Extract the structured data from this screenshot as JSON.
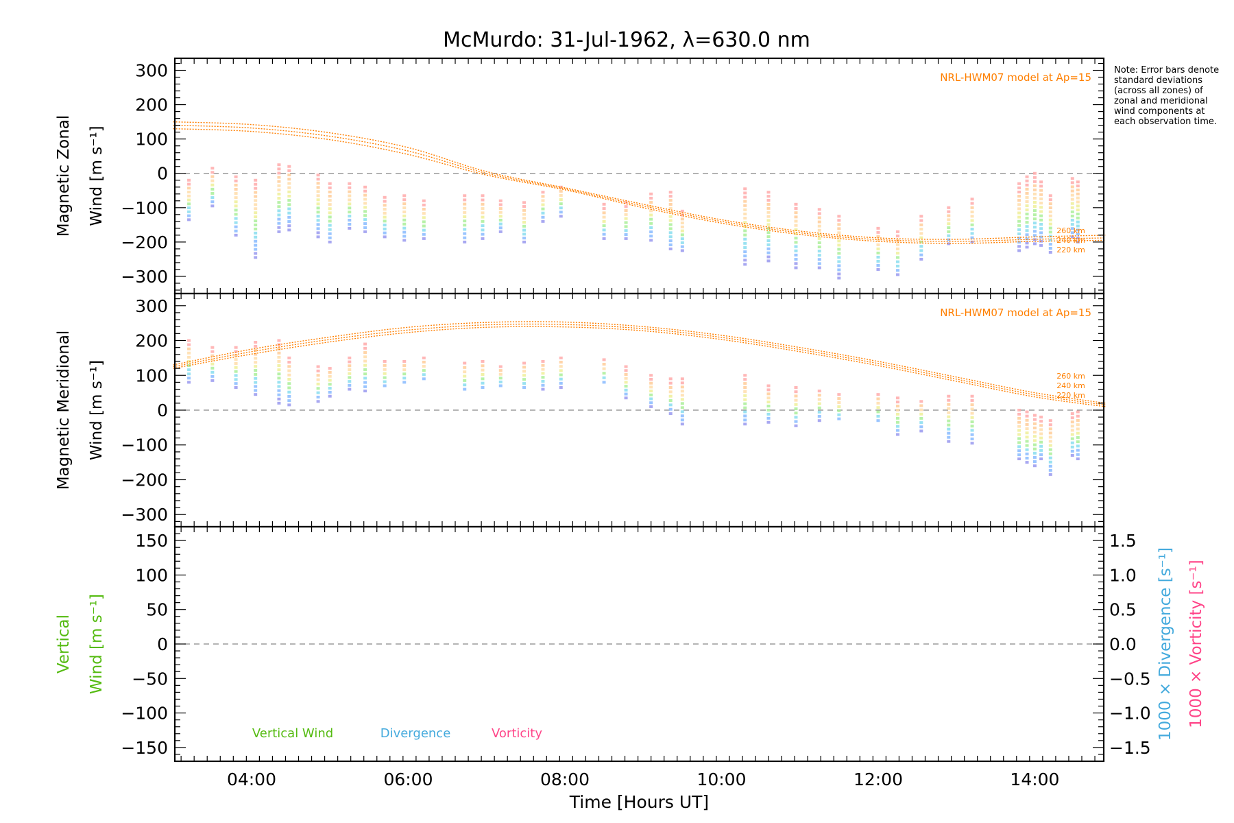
{
  "title": "McMurdo: 31-Jul-1962, λ=630.0 nm",
  "note": "Note: Error bars denote standard deviations (across all zones) of zonal and meridional wind components at each observation time.",
  "colors": {
    "model": "#ff7f00",
    "vertical": "#55bb11",
    "divergence": "#44aadd",
    "vorticity": "#ff4488",
    "zero_line": "#888888",
    "palette": [
      "#9999ee",
      "#88bbff",
      "#88ddee",
      "#aaee99",
      "#eeee99",
      "#ffddaa",
      "#ffcc99",
      "#ffaaaa"
    ]
  },
  "chart_data": {
    "type": "scatter",
    "x_axis": {
      "label": "Time [Hours UT]",
      "range": [
        3.02,
        14.88
      ],
      "ticks": [
        "04:00",
        "06:00",
        "08:00",
        "10:00",
        "12:00",
        "14:00"
      ],
      "tick_values": [
        4,
        6,
        8,
        10,
        12,
        14
      ]
    },
    "panels": [
      {
        "name": "zonal",
        "ylabel": [
          "Magnetic Zonal",
          "Wind [m s⁻¹]"
        ],
        "ylim": [
          -350,
          335
        ],
        "yticks": [
          300,
          200,
          100,
          0,
          -100,
          -200,
          -300
        ],
        "yticklabels": [
          "300",
          "200",
          "100",
          "0",
          "−100",
          "−200",
          "−300"
        ],
        "model_label": "NRL-HWM07 model at Ap=15",
        "altitude_labels": [
          "260 km",
          "240 km",
          "220 km"
        ],
        "model_curves": [
          {
            "altitude": "260 km",
            "x": [
              3.0,
              4.0,
              5.0,
              6.0,
              7.0,
              8.0,
              9.0,
              10.0,
              11.0,
              12.0,
              13.0,
              14.0,
              14.9
            ],
            "y": [
              150,
              142,
              118,
              75,
              5,
              -42,
              -90,
              -135,
              -168,
              -188,
              -192,
              -185,
              -180
            ]
          },
          {
            "altitude": "240 km",
            "x": [
              3.0,
              4.0,
              5.0,
              6.0,
              7.0,
              8.0,
              9.0,
              10.0,
              11.0,
              12.0,
              13.0,
              14.0,
              14.9
            ],
            "y": [
              140,
              132,
              108,
              65,
              0,
              -45,
              -95,
              -140,
              -173,
              -193,
              -198,
              -192,
              -188
            ]
          },
          {
            "altitude": "220 km",
            "x": [
              3.0,
              4.0,
              5.0,
              6.0,
              7.0,
              8.0,
              9.0,
              10.0,
              11.0,
              12.0,
              13.0,
              14.0,
              14.9
            ],
            "y": [
              130,
              122,
              98,
              55,
              -5,
              -48,
              -100,
              -145,
              -178,
              -198,
              -204,
              -198,
              -195
            ]
          }
        ],
        "observations": [
          {
            "t": 3.2,
            "low": -135,
            "high": -20
          },
          {
            "t": 3.5,
            "low": -95,
            "high": 15
          },
          {
            "t": 3.8,
            "low": -180,
            "high": -10
          },
          {
            "t": 4.05,
            "low": -245,
            "high": -20
          },
          {
            "t": 4.35,
            "low": -170,
            "high": 25
          },
          {
            "t": 4.48,
            "low": -165,
            "high": 20
          },
          {
            "t": 4.85,
            "low": -185,
            "high": -5
          },
          {
            "t": 5.0,
            "low": -200,
            "high": -30
          },
          {
            "t": 5.25,
            "low": -160,
            "high": -30
          },
          {
            "t": 5.45,
            "low": -170,
            "high": -40
          },
          {
            "t": 5.7,
            "low": -185,
            "high": -70
          },
          {
            "t": 5.95,
            "low": -195,
            "high": -65
          },
          {
            "t": 6.2,
            "low": -190,
            "high": -80
          },
          {
            "t": 6.72,
            "low": -200,
            "high": -65
          },
          {
            "t": 6.95,
            "low": -190,
            "high": -65
          },
          {
            "t": 7.18,
            "low": -170,
            "high": -80
          },
          {
            "t": 7.48,
            "low": -200,
            "high": -85
          },
          {
            "t": 7.72,
            "low": -140,
            "high": -55
          },
          {
            "t": 7.95,
            "low": -125,
            "high": -40
          },
          {
            "t": 8.5,
            "low": -190,
            "high": -90
          },
          {
            "t": 8.78,
            "low": -190,
            "high": -85
          },
          {
            "t": 9.1,
            "low": -195,
            "high": -60
          },
          {
            "t": 9.35,
            "low": -220,
            "high": -55
          },
          {
            "t": 9.5,
            "low": -225,
            "high": -110
          },
          {
            "t": 10.3,
            "low": -265,
            "high": -45
          },
          {
            "t": 10.6,
            "low": -255,
            "high": -55
          },
          {
            "t": 10.95,
            "low": -275,
            "high": -90
          },
          {
            "t": 11.25,
            "low": -275,
            "high": -105
          },
          {
            "t": 11.5,
            "low": -305,
            "high": -125
          },
          {
            "t": 12.0,
            "low": -280,
            "high": -160
          },
          {
            "t": 12.25,
            "low": -295,
            "high": -170
          },
          {
            "t": 12.55,
            "low": -250,
            "high": -125
          },
          {
            "t": 12.9,
            "low": -205,
            "high": -100
          },
          {
            "t": 13.2,
            "low": -200,
            "high": -75
          },
          {
            "t": 13.8,
            "low": -225,
            "high": -30
          },
          {
            "t": 13.9,
            "low": -215,
            "high": -10
          },
          {
            "t": 14.0,
            "low": -205,
            "high": 0
          },
          {
            "t": 14.08,
            "low": -210,
            "high": -25
          },
          {
            "t": 14.2,
            "low": -230,
            "high": -65
          },
          {
            "t": 14.48,
            "low": -185,
            "high": -15
          },
          {
            "t": 14.55,
            "low": -200,
            "high": -25
          }
        ]
      },
      {
        "name": "meridional",
        "ylabel": [
          "Magnetic Meridional",
          "Wind [m s⁻¹]"
        ],
        "ylim": [
          -335,
          335
        ],
        "yticks": [
          300,
          200,
          100,
          0,
          -100,
          -200,
          -300
        ],
        "yticklabels": [
          "300",
          "200",
          "100",
          "0",
          "−100",
          "−200",
          "−300"
        ],
        "model_label": "NRL-HWM07 model at Ap=15",
        "altitude_labels": [
          "260 km",
          "240 km",
          "220 km"
        ],
        "model_curves": [
          {
            "altitude": "260 km",
            "x": [
              3.0,
              4.0,
              5.0,
              6.0,
              7.0,
              8.0,
              9.0,
              10.0,
              11.0,
              12.0,
              13.0,
              14.0,
              14.9
            ],
            "y": [
              130,
              175,
              210,
              238,
              252,
              253,
              240,
              215,
              180,
              140,
              95,
              50,
              20
            ]
          },
          {
            "altitude": "240 km",
            "x": [
              3.0,
              4.0,
              5.0,
              6.0,
              7.0,
              8.0,
              9.0,
              10.0,
              11.0,
              12.0,
              13.0,
              14.0,
              14.9
            ],
            "y": [
              125,
              168,
              203,
              230,
              245,
              246,
              234,
              209,
              174,
              134,
              89,
              44,
              15
            ]
          },
          {
            "altitude": "220 km",
            "x": [
              3.0,
              4.0,
              5.0,
              6.0,
              7.0,
              8.0,
              9.0,
              10.0,
              11.0,
              12.0,
              13.0,
              14.0,
              14.9
            ],
            "y": [
              120,
              161,
              196,
              223,
              238,
              239,
              228,
              203,
              168,
              128,
              83,
              38,
              10
            ]
          }
        ],
        "observations": [
          {
            "t": 3.2,
            "low": 80,
            "high": 200
          },
          {
            "t": 3.5,
            "low": 85,
            "high": 180
          },
          {
            "t": 3.8,
            "low": 65,
            "high": 180
          },
          {
            "t": 4.05,
            "low": 45,
            "high": 195
          },
          {
            "t": 4.35,
            "low": 20,
            "high": 200
          },
          {
            "t": 4.48,
            "low": 15,
            "high": 150
          },
          {
            "t": 4.85,
            "low": 25,
            "high": 125
          },
          {
            "t": 5.0,
            "low": 40,
            "high": 120
          },
          {
            "t": 5.25,
            "low": 60,
            "high": 150
          },
          {
            "t": 5.45,
            "low": 55,
            "high": 190
          },
          {
            "t": 5.7,
            "low": 70,
            "high": 140
          },
          {
            "t": 5.95,
            "low": 80,
            "high": 140
          },
          {
            "t": 6.2,
            "low": 90,
            "high": 150
          },
          {
            "t": 6.72,
            "low": 60,
            "high": 135
          },
          {
            "t": 6.95,
            "low": 65,
            "high": 140
          },
          {
            "t": 7.18,
            "low": 70,
            "high": 125
          },
          {
            "t": 7.48,
            "low": 65,
            "high": 135
          },
          {
            "t": 7.72,
            "low": 60,
            "high": 140
          },
          {
            "t": 7.95,
            "low": 65,
            "high": 150
          },
          {
            "t": 8.5,
            "low": 80,
            "high": 145
          },
          {
            "t": 8.78,
            "low": 35,
            "high": 125
          },
          {
            "t": 9.1,
            "low": 10,
            "high": 100
          },
          {
            "t": 9.35,
            "low": -10,
            "high": 90
          },
          {
            "t": 9.5,
            "low": -40,
            "high": 90
          },
          {
            "t": 10.3,
            "low": -40,
            "high": 100
          },
          {
            "t": 10.6,
            "low": -35,
            "high": 70
          },
          {
            "t": 10.95,
            "low": -45,
            "high": 65
          },
          {
            "t": 11.25,
            "low": -30,
            "high": 55
          },
          {
            "t": 11.5,
            "low": -25,
            "high": 45
          },
          {
            "t": 12.0,
            "low": -30,
            "high": 45
          },
          {
            "t": 12.25,
            "low": -70,
            "high": 35
          },
          {
            "t": 12.55,
            "low": -60,
            "high": 25
          },
          {
            "t": 12.9,
            "low": -90,
            "high": 40
          },
          {
            "t": 13.2,
            "low": -95,
            "high": 40
          },
          {
            "t": 13.8,
            "low": -140,
            "high": 0
          },
          {
            "t": 13.9,
            "low": -150,
            "high": -5
          },
          {
            "t": 14.0,
            "low": -160,
            "high": -15
          },
          {
            "t": 14.08,
            "low": -140,
            "high": -20
          },
          {
            "t": 14.2,
            "low": -185,
            "high": -30
          },
          {
            "t": 14.48,
            "low": -130,
            "high": -10
          },
          {
            "t": 14.55,
            "low": -140,
            "high": -5
          }
        ]
      },
      {
        "name": "vertical",
        "ylabel": [
          "Vertical",
          "Wind [m s⁻¹]"
        ],
        "ylim": [
          -170,
          170
        ],
        "yticks": [
          150,
          100,
          50,
          0,
          -50,
          -100,
          -150
        ],
        "yticklabels": [
          "150",
          "100",
          "50",
          "0",
          "−50",
          "−100",
          "−150"
        ],
        "right_axis": {
          "ylim": [
            -1.7,
            1.7
          ],
          "ticks": [
            1.5,
            1.0,
            0.5,
            0.0,
            -0.5,
            -1.0,
            -1.5
          ],
          "ticklabels": [
            "1.5",
            "1.0",
            "0.5",
            "0.0",
            "−0.5",
            "−1.0",
            "−1.5"
          ],
          "labels": [
            "1000 × Divergence [s⁻¹]",
            "1000 × Vorticity [s⁻¹]"
          ]
        },
        "legend": [
          "Vertical Wind",
          "Divergence",
          "Vorticity"
        ],
        "observations": []
      }
    ]
  }
}
